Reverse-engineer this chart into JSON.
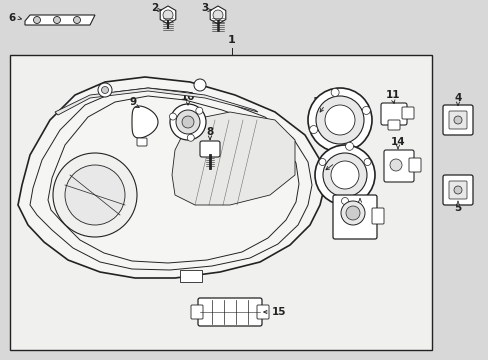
{
  "bg_color": "#d8d8d8",
  "line_color": "#222222",
  "fig_width": 4.89,
  "fig_height": 3.6,
  "dpi": 100
}
